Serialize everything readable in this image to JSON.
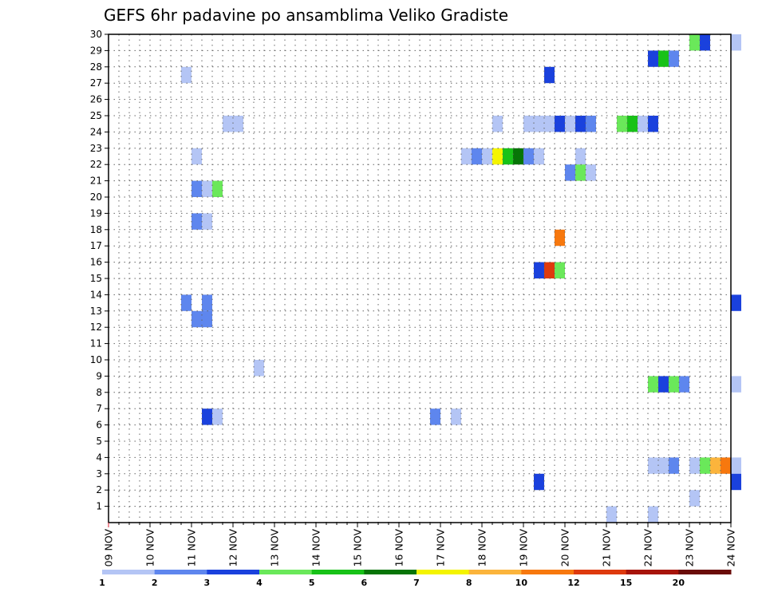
{
  "chart_data": {
    "type": "heatmap",
    "title": "GEFS 6hr padavine po ansamblima Veliko Gradiste",
    "x_labels": [
      "09 NOV",
      "10 NOV",
      "11 NOV",
      "12 NOV",
      "13 NOV",
      "14 NOV",
      "15 NOV",
      "16 NOV",
      "17 NOV",
      "18 NOV",
      "19 NOV",
      "20 NOV",
      "21 NOV",
      "22 NOV",
      "23 NOV",
      "24 NOV"
    ],
    "y_labels": [
      "1",
      "2",
      "3",
      "4",
      "5",
      "6",
      "7",
      "8",
      "9",
      "10",
      "11",
      "12",
      "13",
      "14",
      "15",
      "16",
      "17",
      "18",
      "19",
      "20",
      "21",
      "22",
      "23",
      "24",
      "25",
      "26",
      "27",
      "28",
      "29",
      "30"
    ],
    "x_steps_per_day": 4,
    "y_range": [
      0,
      30
    ],
    "grid": true,
    "colorbar": {
      "labels": [
        "1",
        "2",
        "3",
        "4",
        "5",
        "6",
        "7",
        "8",
        "10",
        "12",
        "15",
        "20"
      ],
      "colors": [
        "#b4c5f5",
        "#5e86ee",
        "#1a41dd",
        "#6ae85a",
        "#18c218",
        "#077507",
        "#f4f400",
        "#fbb43c",
        "#f7780e",
        "#de3a0e",
        "#a71409",
        "#6a0c08"
      ]
    },
    "cells": [
      {
        "member": 29,
        "step": 56,
        "cls": 3
      },
      {
        "member": 29,
        "step": 57,
        "cls": 2
      },
      {
        "member": 29,
        "step": 60,
        "cls": 0
      },
      {
        "member": 28,
        "step": 52,
        "cls": 2
      },
      {
        "member": 28,
        "step": 53,
        "cls": 4
      },
      {
        "member": 28,
        "step": 54,
        "cls": 1
      },
      {
        "member": 27,
        "step": 7,
        "cls": 0
      },
      {
        "member": 27,
        "step": 42,
        "cls": 2
      },
      {
        "member": 24,
        "step": 11,
        "cls": 0
      },
      {
        "member": 24,
        "step": 12,
        "cls": 0
      },
      {
        "member": 24,
        "step": 37,
        "cls": 0
      },
      {
        "member": 24,
        "step": 40,
        "cls": 0
      },
      {
        "member": 24,
        "step": 41,
        "cls": 0
      },
      {
        "member": 24,
        "step": 42,
        "cls": 0
      },
      {
        "member": 24,
        "step": 43,
        "cls": 2
      },
      {
        "member": 24,
        "step": 44,
        "cls": 0
      },
      {
        "member": 24,
        "step": 45,
        "cls": 2
      },
      {
        "member": 24,
        "step": 46,
        "cls": 1
      },
      {
        "member": 24,
        "step": 49,
        "cls": 3
      },
      {
        "member": 24,
        "step": 50,
        "cls": 4
      },
      {
        "member": 24,
        "step": 51,
        "cls": 0
      },
      {
        "member": 24,
        "step": 52,
        "cls": 2
      },
      {
        "member": 22,
        "step": 8,
        "cls": 0
      },
      {
        "member": 22,
        "step": 34,
        "cls": 0
      },
      {
        "member": 22,
        "step": 35,
        "cls": 1
      },
      {
        "member": 22,
        "step": 36,
        "cls": 0
      },
      {
        "member": 22,
        "step": 37,
        "cls": 6
      },
      {
        "member": 22,
        "step": 38,
        "cls": 4
      },
      {
        "member": 22,
        "step": 39,
        "cls": 5
      },
      {
        "member": 22,
        "step": 40,
        "cls": 1
      },
      {
        "member": 22,
        "step": 41,
        "cls": 0
      },
      {
        "member": 22,
        "step": 45,
        "cls": 0
      },
      {
        "member": 21,
        "step": 44,
        "cls": 1
      },
      {
        "member": 21,
        "step": 45,
        "cls": 3
      },
      {
        "member": 21,
        "step": 46,
        "cls": 0
      },
      {
        "member": 20,
        "step": 8,
        "cls": 1
      },
      {
        "member": 20,
        "step": 9,
        "cls": 0
      },
      {
        "member": 20,
        "step": 10,
        "cls": 3
      },
      {
        "member": 18,
        "step": 8,
        "cls": 1
      },
      {
        "member": 18,
        "step": 9,
        "cls": 0
      },
      {
        "member": 17,
        "step": 43,
        "cls": 8
      },
      {
        "member": 15,
        "step": 41,
        "cls": 2
      },
      {
        "member": 15,
        "step": 42,
        "cls": 9
      },
      {
        "member": 15,
        "step": 43,
        "cls": 3
      },
      {
        "member": 13,
        "step": 7,
        "cls": 1
      },
      {
        "member": 13,
        "step": 9,
        "cls": 1
      },
      {
        "member": 13,
        "step": 60,
        "cls": 2
      },
      {
        "member": 12,
        "step": 8,
        "cls": 1
      },
      {
        "member": 12,
        "step": 9,
        "cls": 1
      },
      {
        "member": 9,
        "step": 14,
        "cls": 0
      },
      {
        "member": 8,
        "step": 52,
        "cls": 3
      },
      {
        "member": 8,
        "step": 53,
        "cls": 2
      },
      {
        "member": 8,
        "step": 54,
        "cls": 3
      },
      {
        "member": 8,
        "step": 55,
        "cls": 1
      },
      {
        "member": 8,
        "step": 60,
        "cls": 0
      },
      {
        "member": 6,
        "step": 9,
        "cls": 2
      },
      {
        "member": 6,
        "step": 10,
        "cls": 0
      },
      {
        "member": 6,
        "step": 31,
        "cls": 1
      },
      {
        "member": 6,
        "step": 33,
        "cls": 0
      },
      {
        "member": 3,
        "step": 52,
        "cls": 0
      },
      {
        "member": 3,
        "step": 53,
        "cls": 0
      },
      {
        "member": 3,
        "step": 54,
        "cls": 1
      },
      {
        "member": 3,
        "step": 56,
        "cls": 0
      },
      {
        "member": 3,
        "step": 57,
        "cls": 3
      },
      {
        "member": 3,
        "step": 58,
        "cls": 7
      },
      {
        "member": 3,
        "step": 59,
        "cls": 8
      },
      {
        "member": 3,
        "step": 60,
        "cls": 0
      },
      {
        "member": 2,
        "step": 41,
        "cls": 2
      },
      {
        "member": 2,
        "step": 60,
        "cls": 2
      },
      {
        "member": 1,
        "step": 56,
        "cls": 0
      },
      {
        "member": 0,
        "step": 48,
        "cls": 0
      },
      {
        "member": 0,
        "step": 52,
        "cls": 0
      }
    ]
  }
}
